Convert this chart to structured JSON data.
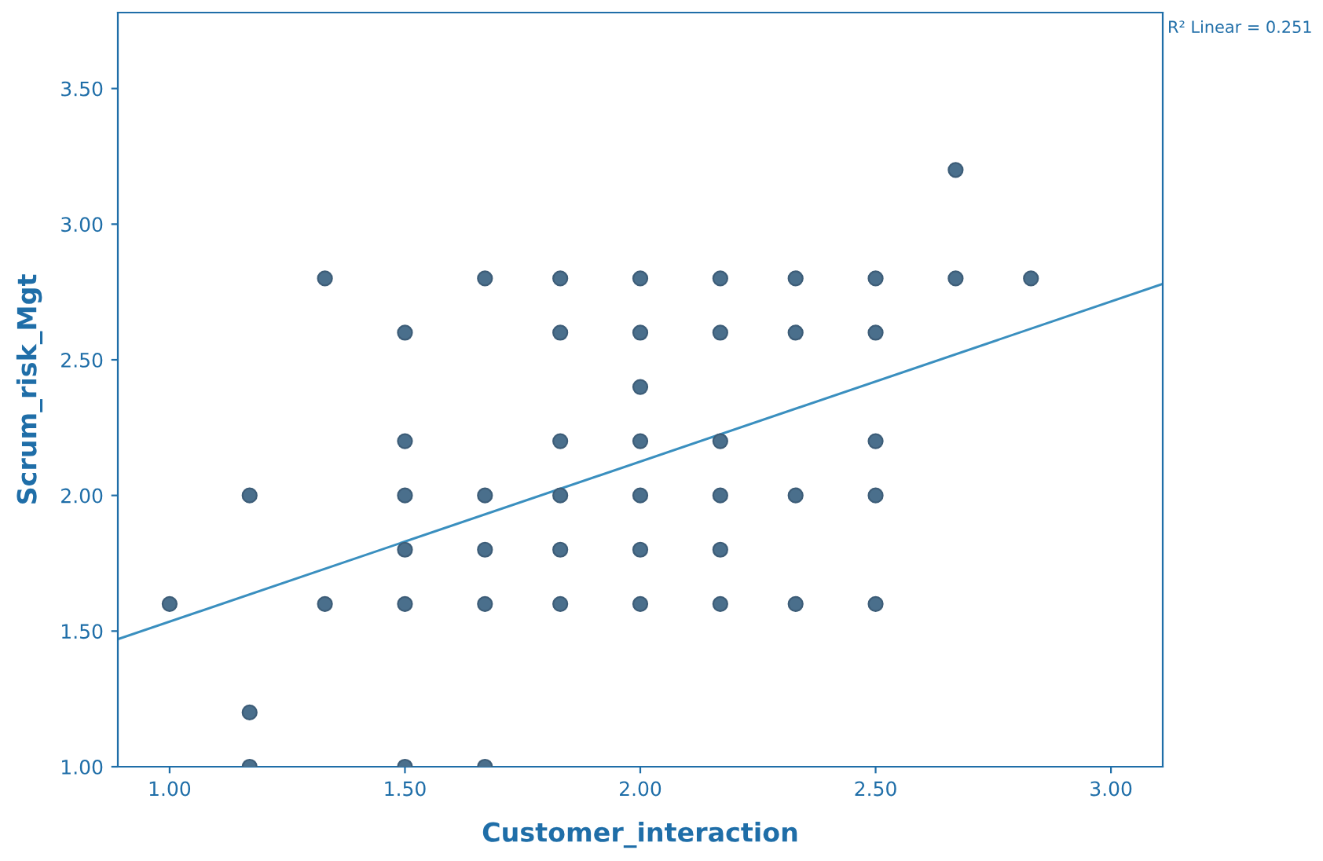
{
  "chart_data": {
    "type": "scatter",
    "xlabel": "Customer_interaction",
    "ylabel": "Scrum_risk_Mgt",
    "annotations": [
      "R² Linear = 0.251"
    ],
    "series": [
      {
        "color": "#4a6f8c",
        "marker": "circle",
        "x": [
          1.0,
          1.17,
          1.17,
          1.17,
          1.33,
          1.33,
          1.5,
          1.5,
          1.5,
          1.5,
          1.5,
          1.5,
          1.67,
          1.67,
          1.67,
          1.67,
          1.67,
          1.83,
          1.83,
          1.83,
          1.83,
          1.83,
          1.83,
          2.0,
          2.0,
          2.0,
          2.0,
          2.0,
          2.0,
          2.0,
          2.17,
          2.17,
          2.17,
          2.17,
          2.17,
          2.17,
          2.33,
          2.33,
          2.33,
          2.33,
          2.5,
          2.5,
          2.5,
          2.5,
          2.5,
          2.67,
          2.67,
          2.83
        ],
        "values": [
          1.6,
          2.0,
          1.2,
          1.0,
          2.8,
          1.6,
          2.6,
          2.2,
          2.0,
          1.8,
          1.6,
          1.0,
          2.8,
          2.0,
          1.8,
          1.6,
          1.0,
          2.8,
          2.6,
          2.2,
          2.0,
          1.8,
          1.6,
          2.8,
          2.6,
          2.4,
          2.2,
          2.0,
          1.8,
          1.6,
          2.8,
          2.6,
          2.2,
          2.0,
          1.8,
          1.6,
          2.8,
          2.6,
          2.0,
          1.6,
          2.8,
          2.6,
          2.2,
          2.0,
          1.6,
          3.2,
          2.8,
          2.8
        ]
      },
      {
        "type": "line",
        "color": "#3a8fbf",
        "line_style": "solid",
        "x": [
          0.89,
          3.11
        ],
        "values": [
          1.47,
          2.78
        ]
      }
    ],
    "xlim": [
      0.89,
      3.11
    ],
    "ylim": [
      1.0,
      3.78
    ],
    "xticks": [
      {
        "value": 1.0,
        "label": "1.00"
      },
      {
        "value": 1.5,
        "label": "1.50"
      },
      {
        "value": 2.0,
        "label": "2.00"
      },
      {
        "value": 2.5,
        "label": "2.50"
      },
      {
        "value": 3.0,
        "label": "3.00"
      }
    ],
    "yticks": [
      {
        "value": 1.0,
        "label": "1.00"
      },
      {
        "value": 1.5,
        "label": "1.50"
      },
      {
        "value": 2.0,
        "label": "2.00"
      },
      {
        "value": 2.5,
        "label": "2.50"
      },
      {
        "value": 3.0,
        "label": "3.00"
      },
      {
        "value": 3.5,
        "label": "3.50"
      }
    ],
    "grid": false,
    "legend": false
  }
}
